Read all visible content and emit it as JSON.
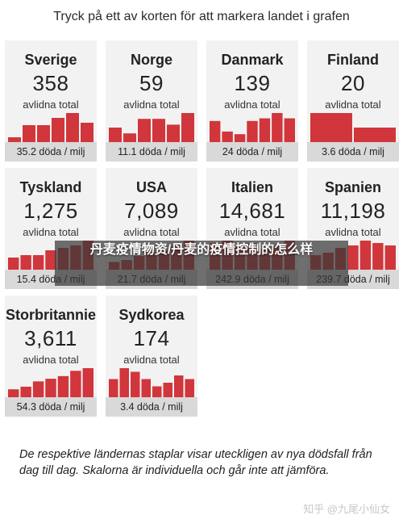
{
  "title": "Tryck på ett av korten för att markera landet i grafen",
  "unit_label": "avlidna total",
  "bar_color": "#d0363b",
  "chart_data": [
    {
      "type": "bar",
      "title": "Sverige",
      "total": "358",
      "deaths_per_million": "35.2 döda / milj",
      "values": [
        2,
        7,
        7,
        10,
        12,
        8
      ]
    },
    {
      "type": "bar",
      "title": "Norge",
      "total": "59",
      "deaths_per_million": "11.1 döda / milj",
      "values": [
        5,
        3,
        8,
        8,
        6,
        10
      ]
    },
    {
      "type": "bar",
      "title": "Danmark",
      "total": "139",
      "deaths_per_million": "24 döda / milj",
      "values": [
        8,
        4,
        3,
        8,
        9,
        11,
        9
      ]
    },
    {
      "type": "bar",
      "title": "Finland",
      "total": "20",
      "deaths_per_million": "3.6 döda / milj",
      "values": [
        3,
        1.5
      ]
    },
    {
      "type": "bar",
      "title": "Tyskland",
      "total": "1,275",
      "deaths_per_million": "15.4 döda / milj",
      "values": [
        5,
        6,
        6,
        8,
        9,
        10,
        12
      ]
    },
    {
      "type": "bar",
      "title": "USA",
      "total": "7,089",
      "deaths_per_million": "21.7 döda / milj",
      "values": [
        4,
        5,
        7,
        9,
        10,
        12,
        15
      ]
    },
    {
      "type": "bar",
      "title": "Italien",
      "total": "14,681",
      "deaths_per_million": "242.9 döda / milj",
      "values": [
        10,
        11,
        9,
        10,
        8,
        9,
        11
      ]
    },
    {
      "type": "bar",
      "title": "Spanien",
      "total": "11,198",
      "deaths_per_million": "239.7 döda / milj",
      "values": [
        6,
        7,
        9,
        10,
        12,
        11,
        10
      ]
    },
    {
      "type": "bar",
      "title": "Storbritannie",
      "total": "3,611",
      "deaths_per_million": "54.3 döda / milj",
      "values": [
        3,
        4,
        6,
        7,
        8,
        10,
        11
      ]
    },
    {
      "type": "bar",
      "title": "Sydkorea",
      "total": "174",
      "deaths_per_million": "3.4 döda / milj",
      "values": [
        5,
        8,
        7,
        5,
        3,
        4,
        6,
        5
      ]
    }
  ],
  "caption": "De respektive ländernas staplar visar uteckligen av nya dödsfall från dag till dag. Skalorna är individuella och går inte att jämföra.",
  "overlay_title": "丹麦疫情物资/丹麦的疫情控制的怎么样",
  "watermark": "知乎 @九尾小仙女"
}
